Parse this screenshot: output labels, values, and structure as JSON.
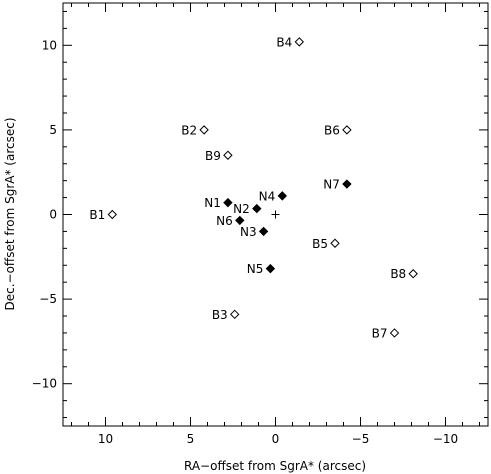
{
  "chart_data": {
    "type": "scatter",
    "xlabel": "RA−offset from SgrA* (arcsec)",
    "ylabel": "Dec.−offset from SgrA* (arcsec)",
    "xlim": [
      12.5,
      -12.5
    ],
    "ylim": [
      -12.5,
      12.5
    ],
    "x_ticks": [
      10,
      5,
      0,
      -5,
      -10
    ],
    "y_ticks": [
      10,
      5,
      0,
      -5,
      -10
    ],
    "x_tick_labels": [
      "10",
      "5",
      "0",
      "−5",
      "−10"
    ],
    "y_tick_labels": [
      "10",
      "5",
      "0",
      "−5",
      "−10"
    ],
    "center_marker": {
      "x": 0,
      "y": 0
    },
    "series": [
      {
        "marker": "filled-diamond",
        "points": [
          {
            "label": "N1",
            "x": 2.8,
            "y": 0.7
          },
          {
            "label": "N2",
            "x": 1.1,
            "y": 0.35
          },
          {
            "label": "N3",
            "x": 0.7,
            "y": -1.0
          },
          {
            "label": "N4",
            "x": -0.4,
            "y": 1.1
          },
          {
            "label": "N5",
            "x": 0.3,
            "y": -3.2
          },
          {
            "label": "N6",
            "x": 2.1,
            "y": -0.35
          },
          {
            "label": "N7",
            "x": -4.2,
            "y": 1.8
          }
        ]
      },
      {
        "marker": "open-diamond",
        "points": [
          {
            "label": "B1",
            "x": 9.6,
            "y": 0.0
          },
          {
            "label": "B2",
            "x": 4.2,
            "y": 5.0
          },
          {
            "label": "B3",
            "x": 2.4,
            "y": -5.9
          },
          {
            "label": "B4",
            "x": -1.4,
            "y": 10.2
          },
          {
            "label": "B5",
            "x": -3.5,
            "y": -1.7
          },
          {
            "label": "B6",
            "x": -4.2,
            "y": 5.0
          },
          {
            "label": "B7",
            "x": -7.0,
            "y": -7.0
          },
          {
            "label": "B8",
            "x": -8.1,
            "y": -3.5
          },
          {
            "label": "B9",
            "x": 2.8,
            "y": 3.5
          }
        ]
      }
    ]
  }
}
